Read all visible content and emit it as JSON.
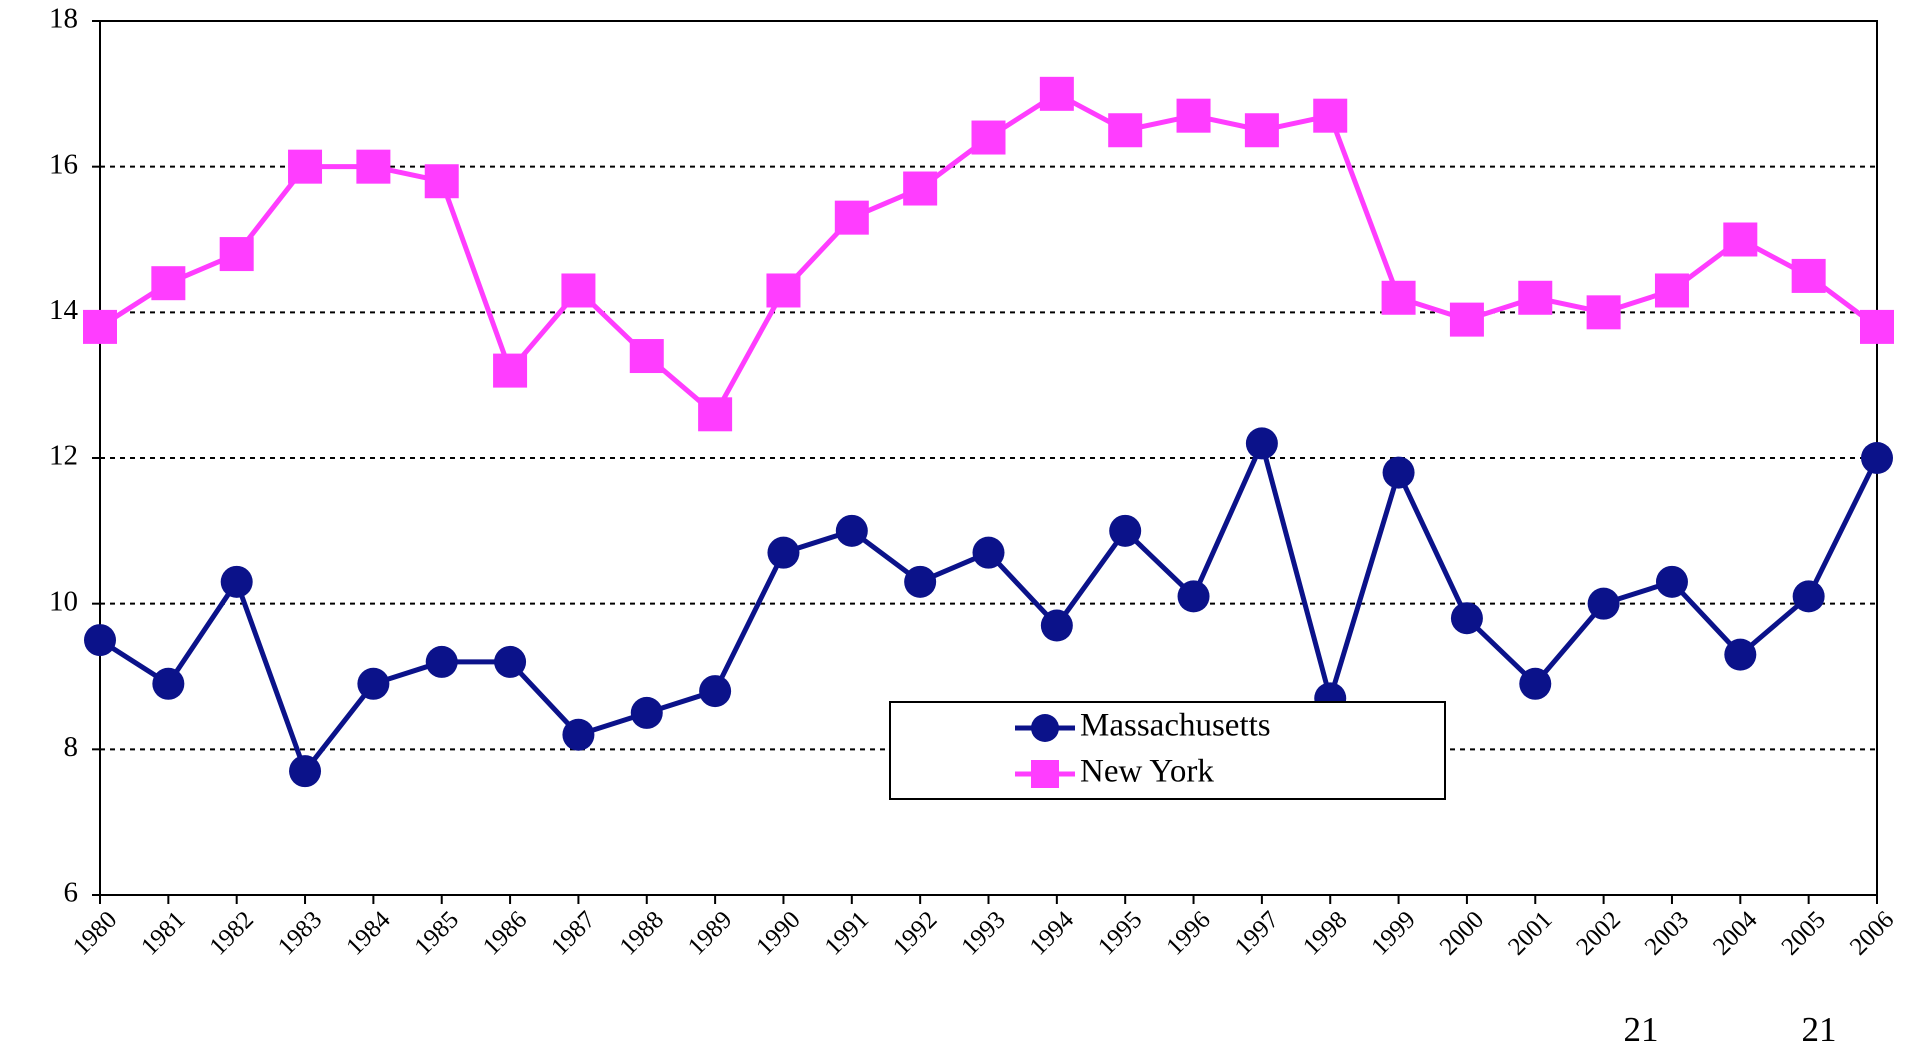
{
  "chart_data": {
    "type": "line",
    "categories": [
      "1980",
      "1981",
      "1982",
      "1983",
      "1984",
      "1985",
      "1986",
      "1987",
      "1988",
      "1989",
      "1990",
      "1991",
      "1992",
      "1993",
      "1994",
      "1995",
      "1996",
      "1997",
      "1998",
      "1999",
      "2000",
      "2001",
      "2002",
      "2003",
      "2004",
      "2005",
      "2006"
    ],
    "series": [
      {
        "name": "Massachusetts",
        "color": "#0b128a",
        "marker": "circle",
        "values": [
          9.5,
          8.9,
          10.3,
          7.7,
          8.9,
          9.2,
          9.2,
          8.2,
          8.5,
          8.8,
          10.7,
          11.0,
          10.3,
          10.7,
          9.7,
          11.0,
          10.1,
          12.2,
          8.7,
          11.8,
          9.8,
          8.9,
          10.0,
          10.3,
          9.3,
          10.1,
          12.0
        ]
      },
      {
        "name": "New York",
        "color": "#ff3dff",
        "marker": "square",
        "values": [
          13.8,
          14.4,
          14.8,
          16.0,
          16.0,
          15.8,
          13.2,
          14.3,
          13.4,
          12.6,
          14.3,
          15.3,
          15.7,
          16.4,
          17.0,
          16.5,
          16.7,
          16.5,
          16.7,
          14.2,
          13.9,
          14.2,
          14.0,
          14.3,
          15.0,
          14.5,
          13.8
        ]
      }
    ],
    "ylim": [
      6,
      18
    ],
    "yticks": [
      6,
      8,
      10,
      12,
      14,
      16,
      18
    ],
    "grid": true,
    "annotations": [
      "21",
      "21"
    ]
  }
}
